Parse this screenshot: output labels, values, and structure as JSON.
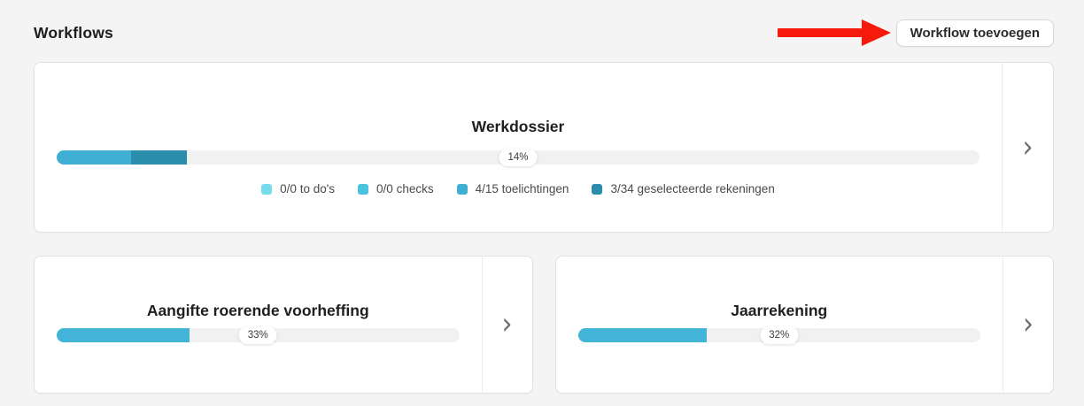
{
  "header": {
    "title": "Workflows",
    "add_button_label": "Workflow toevoegen"
  },
  "icons": {
    "chevron_right": "›"
  },
  "colors": {
    "page_background": "#f4f4f5",
    "card_background": "#ffffff",
    "card_border": "#e2e2e4",
    "progress_track": "#f1f1f2",
    "accent_blue": "#41b4d8",
    "annotation_arrow_red": "#f51a0b",
    "chevron_gray": "#6d6d6d"
  },
  "workflows": [
    {
      "name": "Werkdossier",
      "progress_label": "14%",
      "progress_percent": 14,
      "segments": [
        {
          "label": "0/0 to do's",
          "color": "#74dcea",
          "width_percent": 0
        },
        {
          "label": "0/0 checks",
          "color": "#4ac3e1",
          "width_percent": 0
        },
        {
          "label": "4/15 toelichtingen",
          "color": "#3fafd3",
          "width_percent": 8.1
        },
        {
          "label": "3/34 geselecteerde rekeningen",
          "color": "#2b8dac",
          "width_percent": 6
        }
      ]
    },
    {
      "name": "Aangifte roerende voorheffing",
      "progress_label": "33%",
      "progress_percent": 33,
      "fill_color": "#41b4d8"
    },
    {
      "name": "Jaarrekening",
      "progress_label": "32%",
      "progress_percent": 32,
      "fill_color": "#41b4d8"
    }
  ]
}
